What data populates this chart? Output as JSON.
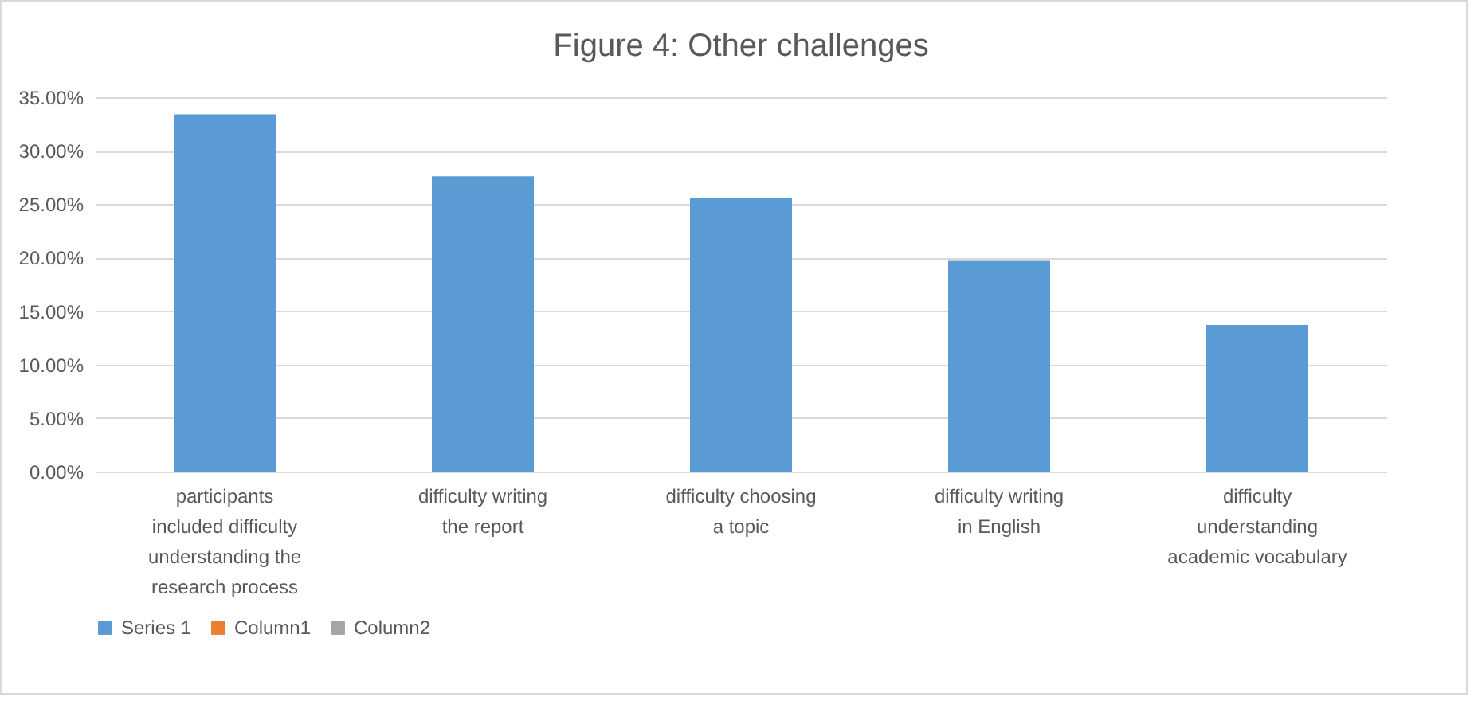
{
  "chart_data": {
    "type": "bar",
    "title": "Figure 4: Other challenges",
    "categories": [
      "participants included difficulty understanding the research process",
      "difficulty writing the report",
      "difficulty choosing a topic",
      "difficulty writing in English",
      "difficulty understanding academic vocabulary"
    ],
    "series": [
      {
        "name": "Series 1",
        "color": "#5b9bd5",
        "values": [
          33.4,
          27.6,
          25.6,
          19.7,
          13.7
        ]
      },
      {
        "name": "Column1",
        "color": "#ed7d31",
        "values": [
          null,
          null,
          null,
          null,
          null
        ]
      },
      {
        "name": "Column2",
        "color": "#a5a5a5",
        "values": [
          null,
          null,
          null,
          null,
          null
        ]
      }
    ],
    "ylim": [
      0,
      35
    ],
    "yticks": [
      {
        "value": 0,
        "label": "0.00%"
      },
      {
        "value": 5,
        "label": "5.00%"
      },
      {
        "value": 10,
        "label": "10.00%"
      },
      {
        "value": 15,
        "label": "15.00%"
      },
      {
        "value": 20,
        "label": "20.00%"
      },
      {
        "value": 25,
        "label": "25.00%"
      },
      {
        "value": 30,
        "label": "30.00%"
      },
      {
        "value": 35,
        "label": "35.00%"
      }
    ],
    "grid": "y",
    "legend": "bottom"
  }
}
